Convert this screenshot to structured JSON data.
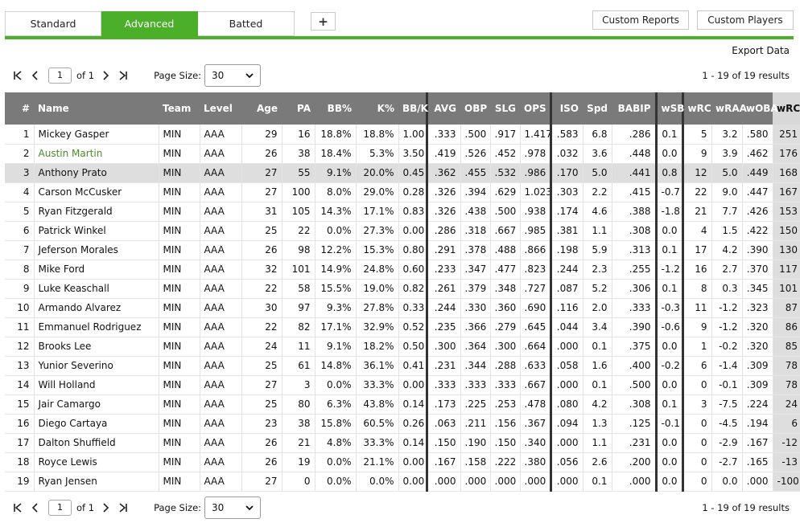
{
  "tabs": [
    {
      "label": "Standard",
      "active": false
    },
    {
      "label": "Advanced",
      "active": true
    },
    {
      "label": "Batted",
      "active": false
    }
  ],
  "plus_label": "+",
  "custom_reports_label": "Custom Reports",
  "custom_players_label": "Custom Players",
  "export_label": "Export Data",
  "pager": {
    "page": "1",
    "of_label": "of 1",
    "page_size_label": "Page Size:",
    "page_size": "30",
    "results": "1 - 19 of 19 results"
  },
  "columns": [
    "#",
    "Name",
    "Team",
    "Level",
    "Age",
    "PA",
    "BB%",
    "K%",
    "BB/K",
    "AVG",
    "OBP",
    "SLG",
    "OPS",
    "ISO",
    "Spd",
    "BABIP",
    "wSB",
    "wRC",
    "wRAA",
    "wOBA",
    "wRC+"
  ],
  "rows": [
    [
      "1",
      "Mickey Gasper",
      "MIN",
      "AAA",
      "29",
      "16",
      "18.8%",
      "18.8%",
      "1.00",
      ".333",
      ".500",
      ".917",
      "1.417",
      ".583",
      "6.8",
      ".286",
      "0.1",
      "5",
      "3.2",
      ".580",
      "251"
    ],
    [
      "2",
      "Austin Martin",
      "MIN",
      "AAA",
      "26",
      "38",
      "18.4%",
      "5.3%",
      "3.50",
      ".419",
      ".526",
      ".452",
      ".978",
      ".032",
      "3.6",
      ".448",
      "0.0",
      "9",
      "3.9",
      ".462",
      "176"
    ],
    [
      "3",
      "Anthony Prato",
      "MIN",
      "AAA",
      "27",
      "55",
      "9.1%",
      "20.0%",
      "0.45",
      ".362",
      ".455",
      ".532",
      ".986",
      ".170",
      "5.0",
      ".441",
      "0.8",
      "12",
      "5.0",
      ".449",
      "168"
    ],
    [
      "4",
      "Carson McCusker",
      "MIN",
      "AAA",
      "27",
      "100",
      "8.0%",
      "29.0%",
      "0.28",
      ".326",
      ".394",
      ".629",
      "1.023",
      ".303",
      "2.2",
      ".415",
      "-0.7",
      "22",
      "9.0",
      ".447",
      "167"
    ],
    [
      "5",
      "Ryan Fitzgerald",
      "MIN",
      "AAA",
      "31",
      "105",
      "14.3%",
      "17.1%",
      "0.83",
      ".326",
      ".438",
      ".500",
      ".938",
      ".174",
      "4.6",
      ".388",
      "-1.8",
      "21",
      "7.7",
      ".426",
      "153"
    ],
    [
      "6",
      "Patrick Winkel",
      "MIN",
      "AAA",
      "25",
      "22",
      "0.0%",
      "27.3%",
      "0.00",
      ".286",
      ".318",
      ".667",
      ".985",
      ".381",
      "1.1",
      ".308",
      "0.0",
      "4",
      "1.5",
      ".422",
      "150"
    ],
    [
      "7",
      "Jeferson Morales",
      "MIN",
      "AAA",
      "26",
      "98",
      "12.2%",
      "15.3%",
      "0.80",
      ".291",
      ".378",
      ".488",
      ".866",
      ".198",
      "5.9",
      ".313",
      "0.1",
      "17",
      "4.2",
      ".390",
      "130"
    ],
    [
      "8",
      "Mike Ford",
      "MIN",
      "AAA",
      "32",
      "101",
      "14.9%",
      "24.8%",
      "0.60",
      ".233",
      ".347",
      ".477",
      ".823",
      ".244",
      "2.3",
      ".255",
      "-1.2",
      "16",
      "2.7",
      ".370",
      "117"
    ],
    [
      "9",
      "Luke Keaschall",
      "MIN",
      "AAA",
      "22",
      "58",
      "15.5%",
      "19.0%",
      "0.82",
      ".261",
      ".379",
      ".348",
      ".727",
      ".087",
      "5.2",
      ".306",
      "0.1",
      "8",
      "0.3",
      ".345",
      "101"
    ],
    [
      "10",
      "Armando Alvarez",
      "MIN",
      "AAA",
      "30",
      "97",
      "9.3%",
      "27.8%",
      "0.33",
      ".244",
      ".330",
      ".360",
      ".690",
      ".116",
      "2.0",
      ".333",
      "-0.3",
      "11",
      "-1.2",
      ".323",
      "87"
    ],
    [
      "11",
      "Emmanuel Rodriguez",
      "MIN",
      "AAA",
      "22",
      "82",
      "17.1%",
      "32.9%",
      "0.52",
      ".235",
      ".366",
      ".279",
      ".645",
      ".044",
      "3.4",
      ".390",
      "-0.6",
      "9",
      "-1.2",
      ".320",
      "86"
    ],
    [
      "12",
      "Brooks Lee",
      "MIN",
      "AAA",
      "24",
      "11",
      "9.1%",
      "18.2%",
      "0.50",
      ".300",
      ".364",
      ".300",
      ".664",
      ".000",
      "0.1",
      ".375",
      "0.0",
      "1",
      "-0.2",
      ".320",
      "85"
    ],
    [
      "13",
      "Yunior Severino",
      "MIN",
      "AAA",
      "25",
      "61",
      "14.8%",
      "36.1%",
      "0.41",
      ".231",
      ".344",
      ".288",
      ".633",
      ".058",
      "1.6",
      ".400",
      "-0.2",
      "6",
      "-1.4",
      ".309",
      "78"
    ],
    [
      "14",
      "Will Holland",
      "MIN",
      "AAA",
      "27",
      "3",
      "0.0%",
      "33.3%",
      "0.00",
      ".333",
      ".333",
      ".333",
      ".667",
      ".000",
      "0.1",
      ".500",
      "0.0",
      "0",
      "-0.1",
      ".309",
      "78"
    ],
    [
      "15",
      "Jair Camargo",
      "MIN",
      "AAA",
      "25",
      "80",
      "6.3%",
      "43.8%",
      "0.14",
      ".173",
      ".225",
      ".253",
      ".478",
      ".080",
      "4.2",
      ".308",
      "0.1",
      "3",
      "-7.5",
      ".224",
      "24"
    ],
    [
      "16",
      "Diego Cartaya",
      "MIN",
      "AAA",
      "23",
      "38",
      "15.8%",
      "60.5%",
      "0.26",
      ".063",
      ".211",
      ".156",
      ".367",
      ".094",
      "1.3",
      ".125",
      "-0.1",
      "0",
      "-4.5",
      ".194",
      "6"
    ],
    [
      "17",
      "Dalton Shuffield",
      "MIN",
      "AAA",
      "26",
      "21",
      "4.8%",
      "33.3%",
      "0.14",
      ".150",
      ".190",
      ".150",
      ".340",
      ".000",
      "1.1",
      ".231",
      "0.0",
      "0",
      "-2.9",
      ".167",
      "-12"
    ],
    [
      "18",
      "Royce Lewis",
      "MIN",
      "AAA",
      "26",
      "19",
      "0.0%",
      "21.1%",
      "0.00",
      ".167",
      ".158",
      ".222",
      ".380",
      ".056",
      "2.6",
      ".200",
      "0.0",
      "0",
      "-2.7",
      ".165",
      "-13"
    ],
    [
      "19",
      "Ryan Jensen",
      "MIN",
      "AAA",
      "27",
      "0",
      "0.0%",
      "0.0%",
      "0.00",
      ".000",
      ".000",
      ".000",
      ".000",
      ".000",
      "0.1",
      ".000",
      "0.0",
      "0",
      "0.0",
      ".000",
      "-100"
    ]
  ],
  "selected_row": 3,
  "link_row": 2,
  "colors": {
    "accent": "#4caf2a",
    "link": "#4a8a2a",
    "header_bg": "#7a7a7a"
  }
}
